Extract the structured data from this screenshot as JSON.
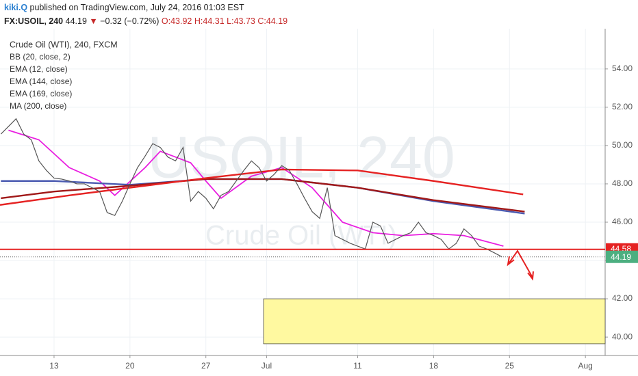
{
  "header": {
    "author": "kiki.Q",
    "published": "published on TradingView.com, July 24, 2016 01:03 EST",
    "symbol": "FX:USOIL, 240",
    "last": "44.19",
    "arrow": "▼",
    "change": "−0.32 (−0.72%)",
    "ohlc": [
      "O:43.92",
      "H:44.31",
      "L:43.73",
      "C:44.19"
    ]
  },
  "chart_data": {
    "type": "line",
    "title": "Crude Oil (WTI), 240, FXCM",
    "watermark": [
      "USOIL, 240",
      "Crude Oil (WTI)"
    ],
    "overlays": [
      "BB (20, close, 2)"
    ],
    "ylim": [
      39.04,
      56.1
    ],
    "xlim": [
      -3.56,
      36.3
    ],
    "grid": true,
    "yticks": [
      {
        "value": 40,
        "label": "40.00"
      },
      {
        "value": 42,
        "label": "42.00"
      },
      {
        "value": 44,
        "label": "44.00"
      },
      {
        "value": 46,
        "label": "46.00"
      },
      {
        "value": 48,
        "label": "48.00"
      },
      {
        "value": 50,
        "label": "50.00"
      },
      {
        "value": 52,
        "label": "52.00"
      },
      {
        "value": 54,
        "label": "54.00"
      }
    ],
    "xticks": [
      {
        "value": 0,
        "label": "13"
      },
      {
        "value": 5,
        "label": "20"
      },
      {
        "value": 10,
        "label": "27"
      },
      {
        "value": 14,
        "label": "Jul"
      },
      {
        "value": 20,
        "label": "11"
      },
      {
        "value": 25,
        "label": "18"
      },
      {
        "value": 30,
        "label": "25"
      },
      {
        "value": 35,
        "label": "Aug"
      }
    ],
    "price": {
      "color": "#555555",
      "x": [
        -3.5,
        -3,
        -2.5,
        -2,
        -1.5,
        -1,
        -0.5,
        0,
        0.5,
        1,
        1.5,
        2,
        2.5,
        3,
        3.5,
        4,
        4.5,
        5,
        5.5,
        6,
        6.5,
        7,
        7.5,
        8,
        8.5,
        9,
        9.5,
        10,
        10.5,
        11,
        11.5,
        12,
        12.5,
        13,
        13.5,
        14,
        14.5,
        15,
        15.5,
        16,
        16.5,
        17,
        17.5,
        18,
        18.5,
        19,
        19.5,
        20,
        20.5,
        21,
        21.5,
        22,
        22.5,
        23,
        23.5,
        24,
        24.5,
        25,
        25.5,
        26,
        26.5,
        27,
        27.5,
        28,
        28.5,
        29,
        29.5
      ],
      "values": [
        50.6,
        51.0,
        51.4,
        50.6,
        50.3,
        49.2,
        48.7,
        48.3,
        48.25,
        48.15,
        48.0,
        48.0,
        47.8,
        47.6,
        46.5,
        46.35,
        47.1,
        48.0,
        48.85,
        49.45,
        50.1,
        49.9,
        49.4,
        49.2,
        49.9,
        47.1,
        47.6,
        47.25,
        46.7,
        47.4,
        47.6,
        48.15,
        48.7,
        49.2,
        48.85,
        48.15,
        48.5,
        48.95,
        48.7,
        48.0,
        47.25,
        46.55,
        46.2,
        47.8,
        45.3,
        45.1,
        44.9,
        44.75,
        44.6,
        46.0,
        45.8,
        44.9,
        45.1,
        45.3,
        45.45,
        46.0,
        45.45,
        45.3,
        45.1,
        44.6,
        44.9,
        45.65,
        45.3,
        44.75,
        44.6,
        44.4,
        44.19
      ]
    },
    "series": [
      {
        "name": "EMA (12, close)",
        "color": "#e91ee0",
        "x": [
          -3,
          -1,
          1,
          3,
          4,
          6,
          7,
          9,
          10,
          11,
          13,
          15,
          17,
          18,
          19,
          21,
          23,
          25,
          27,
          29.6
        ],
        "values": [
          50.8,
          50.3,
          48.85,
          48.15,
          47.4,
          48.85,
          49.7,
          49.1,
          48.15,
          47.25,
          48.4,
          48.85,
          47.8,
          46.9,
          46.0,
          45.45,
          45.3,
          45.4,
          45.3,
          44.75
        ]
      },
      {
        "name": "EMA (144, close)",
        "color": "#4a5ab0",
        "x": [
          -3.5,
          0,
          5,
          10,
          15,
          20,
          25,
          31
        ],
        "values": [
          48.15,
          48.15,
          47.95,
          48.25,
          48.25,
          47.8,
          47.1,
          46.45
        ]
      },
      {
        "name": "EMA (169, close)",
        "color": "#a01818",
        "x": [
          -3.5,
          0,
          5,
          10,
          15,
          20,
          25,
          31
        ],
        "values": [
          47.25,
          47.6,
          47.9,
          48.25,
          48.25,
          47.8,
          47.15,
          46.55
        ]
      },
      {
        "name": "MA (200, close)",
        "color": "#e52222",
        "x": [
          -3.56,
          1,
          5,
          10,
          15,
          20,
          25,
          30.9
        ],
        "values": [
          46.9,
          47.4,
          47.8,
          48.3,
          48.75,
          48.7,
          48.15,
          47.45
        ]
      }
    ],
    "hline": {
      "value": 44.58,
      "label": "44.58",
      "color": "#e52222"
    },
    "last_price": {
      "value": 44.19,
      "label": "44.19",
      "color": "#4caf80"
    },
    "zone": {
      "y": [
        39.65,
        42
      ],
      "x_from": 13.8,
      "color": "#fff9a0"
    }
  }
}
